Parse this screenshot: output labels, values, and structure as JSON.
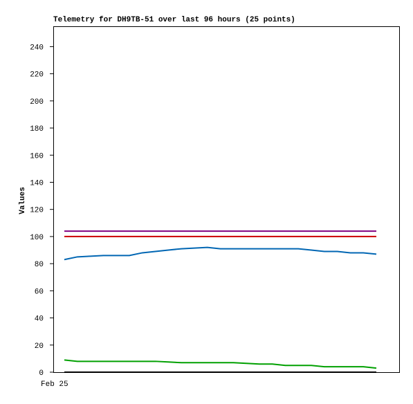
{
  "chart_data": {
    "type": "line",
    "title": "Telemetry for DH9TB-51 over last 96 hours (25 points)",
    "y_label": "Values",
    "categories": [
      "Feb 25",
      null,
      null,
      null,
      null,
      null,
      null,
      null,
      null,
      null,
      null,
      null,
      null,
      null,
      null,
      null,
      null,
      null,
      null,
      null,
      null,
      null,
      null,
      null,
      null
    ],
    "series": [
      {
        "color": "#800080",
        "values": [
          104,
          104,
          104,
          104,
          104,
          104,
          104,
          104,
          104,
          104,
          104,
          104,
          104,
          104,
          104,
          104,
          104,
          104,
          104,
          104,
          104,
          104,
          104,
          104,
          104
        ]
      },
      {
        "color": "#cc0000",
        "values": [
          100,
          100,
          100,
          100,
          100,
          100,
          100,
          100,
          100,
          100,
          100,
          100,
          100,
          100,
          100,
          100,
          100,
          100,
          100,
          100,
          100,
          100,
          100,
          100,
          100
        ]
      },
      {
        "color": "#0066b3",
        "values": [
          83,
          85,
          85.5,
          86,
          86,
          86,
          88,
          89,
          90,
          91,
          91.5,
          92,
          91,
          91,
          91,
          91,
          91,
          91,
          91,
          90,
          89,
          89,
          88,
          88,
          87
        ]
      },
      {
        "color": "#00a000",
        "values": [
          9,
          8,
          8,
          8,
          8,
          8,
          8,
          8,
          7.5,
          7,
          7,
          7,
          7,
          7,
          6.5,
          6,
          6,
          5,
          5,
          5,
          4,
          4,
          4,
          4,
          3
        ]
      },
      {
        "color": "#000000",
        "values": [
          0,
          0,
          0,
          0,
          0,
          0,
          0,
          0,
          0,
          0,
          0,
          0,
          0,
          0,
          0,
          0,
          0,
          0,
          0,
          0,
          0,
          0,
          0,
          0,
          0
        ]
      }
    ],
    "ylim": [
      0,
      255
    ],
    "yticks": [
      0,
      20,
      40,
      60,
      80,
      100,
      120,
      140,
      160,
      180,
      200,
      220,
      240
    ],
    "grid": false
  }
}
